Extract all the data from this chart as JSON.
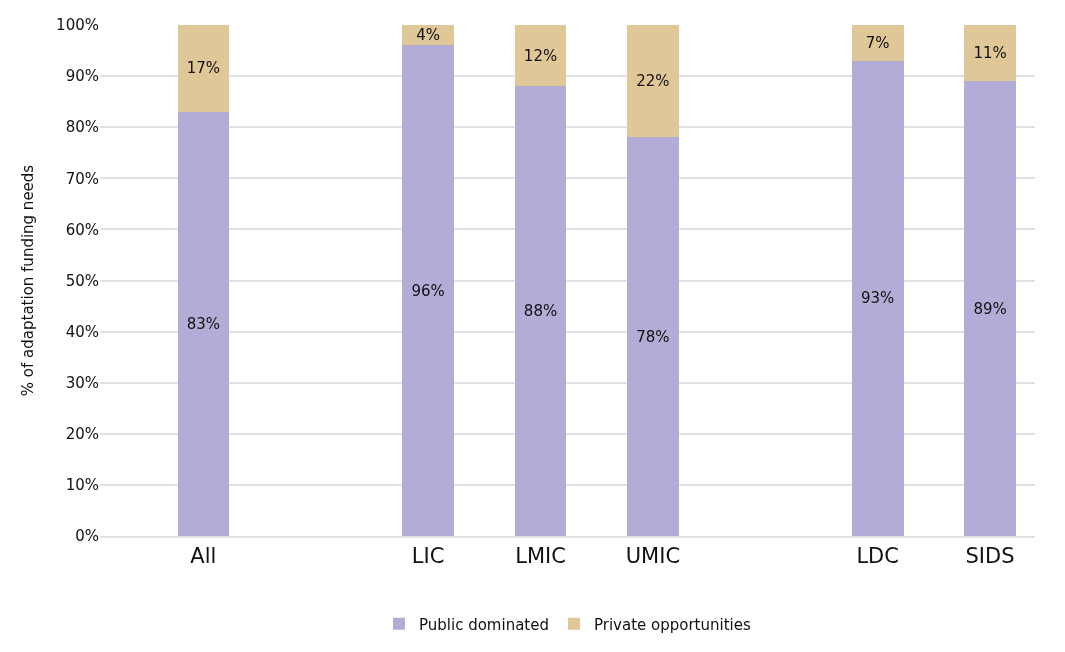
{
  "chart_data": {
    "type": "bar",
    "stacked": true,
    "ylabel": "% of adaptation funding needs",
    "categories": [
      "All",
      null,
      "LIC",
      "LMIC",
      "UMIC",
      null,
      "LDC",
      "SIDS"
    ],
    "series": [
      {
        "name": "Public dominated",
        "color": "#b3acd6",
        "values": [
          83,
          null,
          96,
          88,
          78,
          null,
          93,
          89
        ],
        "value_labels": [
          "83%",
          null,
          "96%",
          "88%",
          "78%",
          null,
          "93%",
          "89%"
        ]
      },
      {
        "name": "Private opportunities",
        "color": "#dfc797",
        "values": [
          17,
          null,
          4,
          12,
          22,
          null,
          7,
          11
        ],
        "value_labels": [
          "17%",
          null,
          "4%",
          "12%",
          "22%",
          null,
          "7%",
          "11%"
        ]
      }
    ],
    "ylim": [
      0,
      100
    ],
    "yticks": [
      {
        "value": 0,
        "label": "0%"
      },
      {
        "value": 10,
        "label": "10%"
      },
      {
        "value": 20,
        "label": "20%"
      },
      {
        "value": 30,
        "label": "30%"
      },
      {
        "value": 40,
        "label": "40%"
      },
      {
        "value": 50,
        "label": "50%"
      },
      {
        "value": 60,
        "label": "60%"
      },
      {
        "value": 70,
        "label": "70%"
      },
      {
        "value": 80,
        "label": "80%"
      },
      {
        "value": 90,
        "label": "90%"
      },
      {
        "value": 100,
        "label": "100%"
      }
    ],
    "grid": "y",
    "legend": "bottom"
  }
}
